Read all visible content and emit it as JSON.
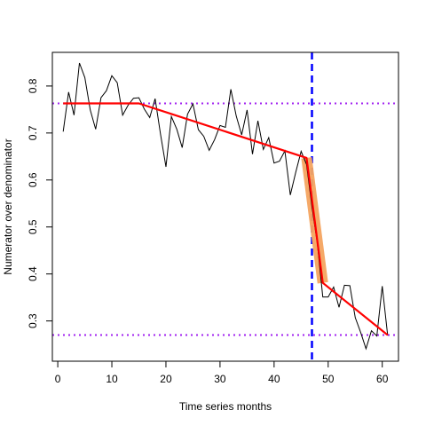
{
  "chart_data": {
    "type": "line",
    "title": "",
    "xlabel": "Time series months",
    "ylabel": "Numerator over denominator",
    "xlim": [
      -1,
      63
    ],
    "ylim": [
      0.2143,
      0.8716
    ],
    "x_ticks": [
      0,
      10,
      20,
      30,
      40,
      50,
      60
    ],
    "y_ticks": [
      0.3,
      0.4,
      0.5,
      0.6,
      0.7,
      0.8
    ],
    "x_tick_labels": [
      "0",
      "10",
      "20",
      "30",
      "40",
      "50",
      "60"
    ],
    "y_tick_labels": [
      "0.3",
      "0.4",
      "0.5",
      "0.6",
      "0.7",
      "0.8"
    ],
    "grid": false,
    "legend": false,
    "series": [
      {
        "style": "observed",
        "color": "#000000",
        "x": [
          1,
          2,
          3,
          4,
          5,
          6,
          7,
          8,
          9,
          10,
          11,
          12,
          13,
          14,
          15,
          16,
          17,
          18,
          19,
          20,
          21,
          22,
          23,
          24,
          25,
          26,
          27,
          28,
          29,
          30,
          31,
          32,
          33,
          34,
          35,
          36,
          37,
          38,
          39,
          40,
          41,
          42,
          43,
          44,
          45,
          46,
          47,
          48,
          49,
          50,
          51,
          52,
          53,
          54,
          55,
          56,
          57,
          58,
          59,
          60,
          61
        ],
        "y": [
          0.703,
          0.787,
          0.738,
          0.849,
          0.818,
          0.749,
          0.708,
          0.775,
          0.79,
          0.822,
          0.807,
          0.738,
          0.759,
          0.774,
          0.775,
          0.751,
          0.733,
          0.773,
          0.697,
          0.628,
          0.735,
          0.708,
          0.669,
          0.74,
          0.762,
          0.707,
          0.693,
          0.663,
          0.686,
          0.716,
          0.712,
          0.793,
          0.736,
          0.696,
          0.749,
          0.655,
          0.726,
          0.665,
          0.69,
          0.636,
          0.64,
          0.662,
          0.568,
          0.616,
          0.661,
          0.633,
          0.543,
          0.465,
          0.351,
          0.351,
          0.372,
          0.329,
          0.376,
          0.375,
          0.307,
          0.276,
          0.241,
          0.279,
          0.268,
          0.374,
          0.269
        ]
      },
      {
        "style": "fitted",
        "color": "#ff0000",
        "x": [
          1,
          15,
          46,
          49,
          61
        ],
        "y": [
          0.763,
          0.763,
          0.647,
          0.381,
          0.27
        ]
      },
      {
        "style": "transition-band",
        "color": "#f4a460",
        "x": [
          46,
          49
        ],
        "y": [
          0.647,
          0.381
        ]
      }
    ],
    "reference_lines": [
      {
        "orientation": "horizontal",
        "value": 0.763,
        "color": "#a020f0",
        "style": "dotted"
      },
      {
        "orientation": "horizontal",
        "value": 0.27,
        "color": "#a020f0",
        "style": "dotted"
      },
      {
        "orientation": "vertical",
        "value": 47,
        "color": "#0000ff",
        "style": "dashed"
      }
    ]
  }
}
